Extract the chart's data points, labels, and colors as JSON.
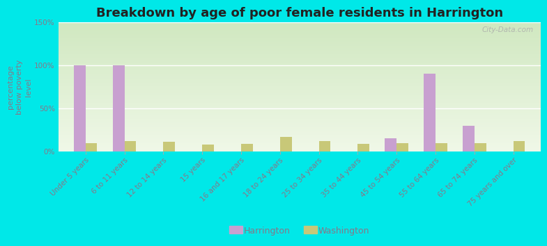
{
  "title": "Breakdown by age of poor female residents in Harrington",
  "ylabel": "percentage\nbelow poverty\nlevel",
  "categories": [
    "Under 5 years",
    "6 to 11 years",
    "12 to 14 years",
    "15 years",
    "16 and 17 years",
    "18 to 24 years",
    "25 to 34 years",
    "35 to 44 years",
    "45 to 54 years",
    "55 to 64 years",
    "65 to 74 years",
    "75 years and over"
  ],
  "harrington": [
    100,
    100,
    0,
    0,
    0,
    0,
    0,
    0,
    15,
    90,
    30,
    0
  ],
  "washington": [
    10,
    12,
    11,
    8,
    9,
    17,
    12,
    9,
    10,
    10,
    10,
    12
  ],
  "harrington_color": "#c8a0d0",
  "washington_color": "#c8c878",
  "background_plot_top": "#d0e8c0",
  "background_plot_bottom": "#f0f8e8",
  "background_fig": "#00e8e8",
  "ylim": [
    0,
    150
  ],
  "yticks": [
    0,
    50,
    100,
    150
  ],
  "ytick_labels": [
    "0%",
    "50%",
    "100%",
    "150%"
  ],
  "bar_width": 0.3,
  "title_fontsize": 13,
  "axis_fontsize": 8,
  "tick_fontsize": 7.5,
  "legend_fontsize": 9,
  "label_color": "#886688"
}
